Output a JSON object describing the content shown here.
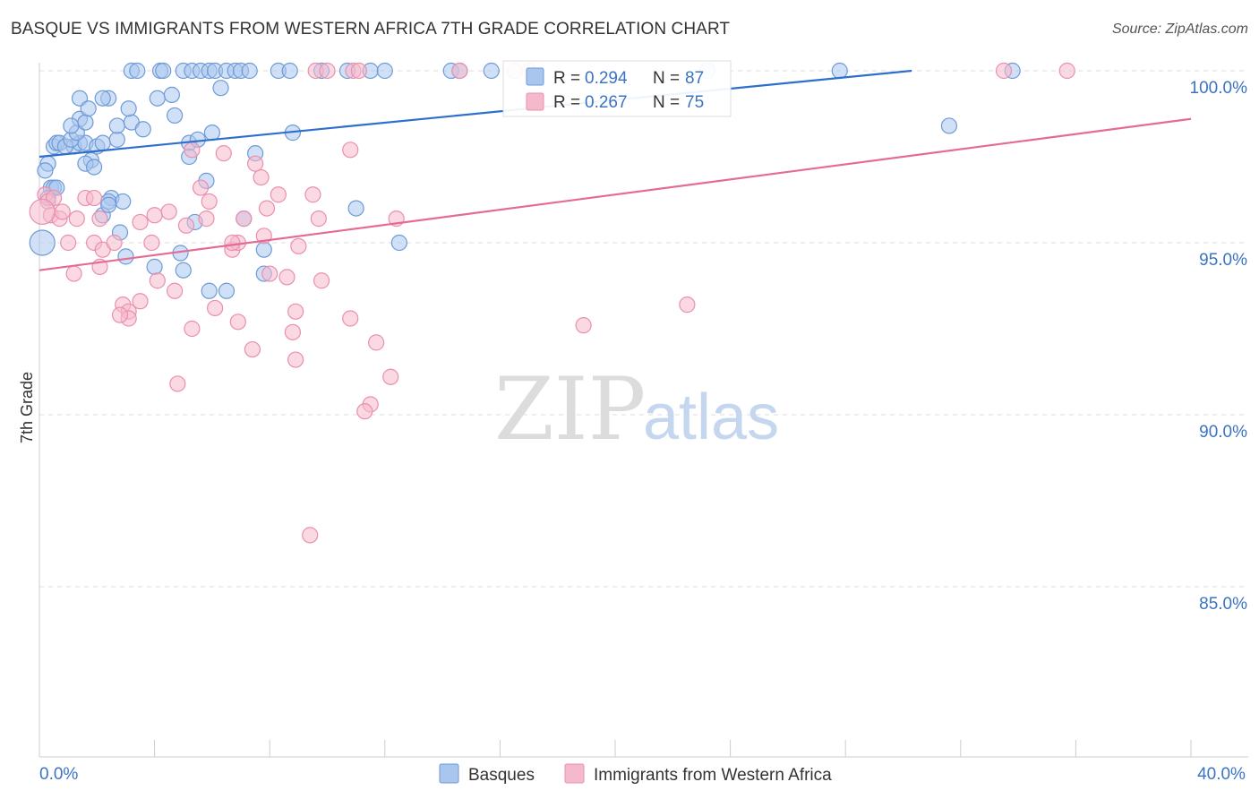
{
  "title": "BASQUE VS IMMIGRANTS FROM WESTERN AFRICA 7TH GRADE CORRELATION CHART",
  "source": "Source: ZipAtlas.com",
  "watermark": {
    "part1": "ZIP",
    "part2": "atlas"
  },
  "colors": {
    "blue_fill": "#a9c6ee",
    "blue_stroke": "#6f9ad6",
    "blue_line": "#2d6fcc",
    "pink_fill": "#f5b9cc",
    "pink_stroke": "#ea8fae",
    "pink_line": "#e46b95",
    "axis_text": "#3b73c4",
    "grid": "#dddddd"
  },
  "stats": {
    "r_label": "R =",
    "n_label": "N =",
    "rows": [
      {
        "series": "Basques",
        "r": "0.294",
        "n": "87"
      },
      {
        "series": "Immigrants from Western Africa",
        "r": "0.267",
        "n": "75"
      }
    ]
  },
  "chart_data": {
    "type": "scatter",
    "ylabel": "7th Grade",
    "xlabel": "",
    "xlim": [
      0,
      40
    ],
    "ylim": [
      80.5,
      101.5
    ],
    "x_tick_labels": [
      {
        "value": 0,
        "label": "0.0%"
      },
      {
        "value": 40,
        "label": "40.0%"
      }
    ],
    "x_minor_ticks": [
      0,
      4,
      8,
      12,
      16,
      20,
      24,
      28,
      32,
      36,
      40
    ],
    "y_ticks": [
      {
        "value": 100,
        "label": "100.0%"
      },
      {
        "value": 95,
        "label": "95.0%"
      },
      {
        "value": 90,
        "label": "90.0%"
      },
      {
        "value": 85,
        "label": "85.0%"
      }
    ],
    "legend_position": "bottom-center",
    "grid": true,
    "series": [
      {
        "name": "Basques",
        "color": "#a9c6ee",
        "trend": {
          "x": [
            0,
            30.3
          ],
          "y": [
            97.5,
            100.0
          ]
        },
        "points": [
          [
            3.2,
            100
          ],
          [
            3.4,
            100
          ],
          [
            4.2,
            100
          ],
          [
            4.3,
            100
          ],
          [
            5.0,
            100
          ],
          [
            5.3,
            100
          ],
          [
            5.6,
            100
          ],
          [
            5.9,
            100
          ],
          [
            6.1,
            100
          ],
          [
            6.5,
            100
          ],
          [
            6.8,
            100
          ],
          [
            7.0,
            100
          ],
          [
            7.3,
            100
          ],
          [
            8.3,
            100
          ],
          [
            8.7,
            100
          ],
          [
            9.8,
            100
          ],
          [
            10.7,
            100
          ],
          [
            11.5,
            100
          ],
          [
            12.0,
            100
          ],
          [
            14.3,
            100
          ],
          [
            14.6,
            100
          ],
          [
            15.7,
            100
          ],
          [
            27.8,
            100
          ],
          [
            23.2,
            100
          ],
          [
            33.8,
            100
          ],
          [
            0.5,
            97.8
          ],
          [
            0.6,
            97.9
          ],
          [
            0.7,
            97.9
          ],
          [
            1.2,
            97.8
          ],
          [
            1.4,
            97.9
          ],
          [
            1.6,
            97.9
          ],
          [
            0.9,
            97.8
          ],
          [
            1.1,
            98.0
          ],
          [
            1.3,
            98.2
          ],
          [
            2.0,
            97.8
          ],
          [
            2.2,
            97.9
          ],
          [
            2.7,
            98.0
          ],
          [
            0.3,
            97.3
          ],
          [
            0.2,
            97.1
          ],
          [
            1.8,
            97.4
          ],
          [
            1.6,
            97.3
          ],
          [
            1.9,
            97.2
          ],
          [
            1.4,
            98.6
          ],
          [
            1.6,
            98.5
          ],
          [
            1.1,
            98.4
          ],
          [
            2.7,
            98.4
          ],
          [
            3.2,
            98.5
          ],
          [
            3.6,
            98.3
          ],
          [
            3.1,
            98.9
          ],
          [
            2.4,
            99.2
          ],
          [
            2.2,
            99.2
          ],
          [
            1.4,
            99.2
          ],
          [
            1.7,
            98.9
          ],
          [
            4.1,
            99.2
          ],
          [
            4.6,
            99.3
          ],
          [
            4.7,
            98.7
          ],
          [
            6.0,
            98.2
          ],
          [
            5.2,
            97.9
          ],
          [
            5.2,
            97.5
          ],
          [
            5.5,
            98.0
          ],
          [
            7.8,
            94.8
          ],
          [
            7.1,
            95.7
          ],
          [
            8.8,
            98.2
          ],
          [
            11.0,
            96.0
          ],
          [
            0.4,
            96.6
          ],
          [
            0.5,
            96.6
          ],
          [
            0.6,
            96.6
          ],
          [
            0.3,
            96.3
          ],
          [
            2.5,
            96.3
          ],
          [
            2.9,
            96.2
          ],
          [
            2.4,
            96.2
          ],
          [
            2.2,
            95.8
          ],
          [
            2.4,
            96.1
          ],
          [
            2.8,
            95.3
          ],
          [
            3.0,
            94.6
          ],
          [
            4.0,
            94.3
          ],
          [
            5.0,
            94.2
          ],
          [
            4.9,
            94.7
          ],
          [
            5.4,
            95.6
          ],
          [
            5.8,
            96.8
          ],
          [
            5.9,
            93.6
          ],
          [
            6.5,
            93.6
          ],
          [
            7.8,
            94.1
          ],
          [
            12.5,
            95.0
          ],
          [
            31.6,
            98.4
          ],
          [
            7.5,
            97.6
          ],
          [
            6.3,
            99.5
          ]
        ]
      },
      {
        "name": "Immigrants from Western Africa",
        "color": "#f5b9cc",
        "trend": {
          "x": [
            0,
            40
          ],
          "y": [
            94.2,
            98.6
          ]
        },
        "points": [
          [
            9.6,
            100
          ],
          [
            10.0,
            100
          ],
          [
            10.9,
            100
          ],
          [
            11.1,
            100
          ],
          [
            14.6,
            100
          ],
          [
            16.5,
            100
          ],
          [
            17.0,
            100
          ],
          [
            33.5,
            100
          ],
          [
            35.7,
            100
          ],
          [
            0.2,
            96.4
          ],
          [
            0.3,
            96.2
          ],
          [
            0.5,
            96.3
          ],
          [
            0.4,
            95.8
          ],
          [
            0.7,
            95.7
          ],
          [
            0.8,
            95.9
          ],
          [
            1.0,
            95.0
          ],
          [
            1.3,
            95.7
          ],
          [
            1.6,
            96.3
          ],
          [
            1.9,
            96.3
          ],
          [
            2.1,
            95.7
          ],
          [
            1.9,
            95.0
          ],
          [
            2.2,
            94.8
          ],
          [
            2.1,
            94.3
          ],
          [
            2.6,
            95.0
          ],
          [
            3.5,
            95.6
          ],
          [
            3.9,
            95.0
          ],
          [
            4.0,
            95.8
          ],
          [
            4.5,
            95.9
          ],
          [
            4.7,
            93.6
          ],
          [
            5.1,
            95.5
          ],
          [
            5.3,
            97.7
          ],
          [
            5.6,
            96.6
          ],
          [
            5.9,
            96.2
          ],
          [
            5.8,
            95.7
          ],
          [
            6.1,
            93.1
          ],
          [
            6.4,
            97.6
          ],
          [
            6.7,
            94.8
          ],
          [
            6.9,
            95.0
          ],
          [
            7.1,
            95.7
          ],
          [
            7.5,
            97.3
          ],
          [
            7.7,
            96.9
          ],
          [
            7.8,
            95.2
          ],
          [
            7.9,
            96.0
          ],
          [
            8.0,
            94.1
          ],
          [
            8.3,
            96.4
          ],
          [
            8.8,
            92.4
          ],
          [
            8.9,
            91.6
          ],
          [
            9.5,
            96.4
          ],
          [
            9.7,
            95.7
          ],
          [
            10.8,
            97.7
          ],
          [
            10.8,
            92.8
          ],
          [
            11.7,
            92.1
          ],
          [
            12.2,
            91.1
          ],
          [
            12.4,
            95.7
          ],
          [
            11.5,
            90.3
          ],
          [
            11.3,
            90.1
          ],
          [
            9.8,
            93.9
          ],
          [
            9.4,
            86.5
          ],
          [
            2.9,
            93.2
          ],
          [
            3.1,
            93.0
          ],
          [
            3.5,
            93.3
          ],
          [
            4.1,
            93.9
          ],
          [
            4.8,
            90.9
          ],
          [
            5.3,
            92.5
          ],
          [
            6.9,
            92.7
          ],
          [
            7.4,
            91.9
          ],
          [
            8.9,
            93.0
          ],
          [
            8.6,
            94.0
          ],
          [
            18.9,
            92.6
          ],
          [
            22.5,
            93.2
          ],
          [
            3.1,
            92.8
          ],
          [
            2.8,
            92.9
          ],
          [
            9.0,
            94.9
          ],
          [
            6.7,
            95.0
          ],
          [
            1.2,
            94.1
          ]
        ]
      }
    ]
  }
}
